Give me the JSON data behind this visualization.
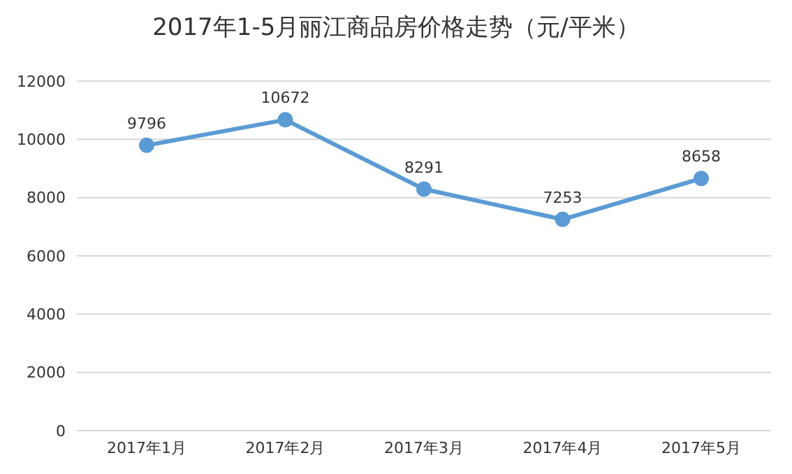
{
  "chart_data": {
    "type": "line",
    "title": "2017年1-5月丽江商品房价格走势（元/平米）",
    "categories": [
      "2017年1月",
      "2017年2月",
      "2017年3月",
      "2017年4月",
      "2017年5月"
    ],
    "series": [
      {
        "color": "#5b9bd5",
        "values": [
          9796,
          10672,
          8291,
          7253,
          8658
        ]
      }
    ],
    "ylim": [
      0,
      12000
    ],
    "yticks": [
      0,
      2000,
      4000,
      6000,
      8000,
      10000,
      12000
    ],
    "grid": "y",
    "marker": "circle",
    "line_style": "solid",
    "data_labels": true,
    "legend": false
  }
}
